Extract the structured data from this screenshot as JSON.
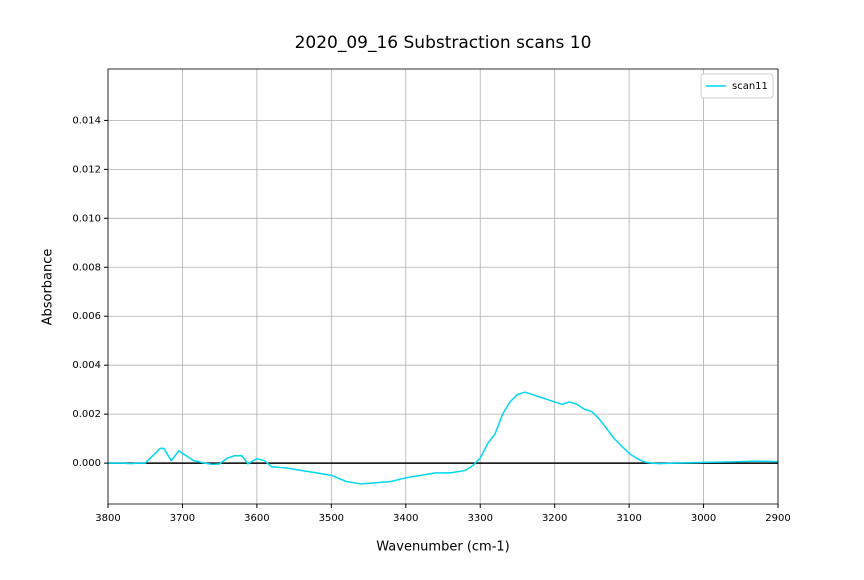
{
  "chart_data": {
    "type": "line",
    "title": "2020_09_16 Substraction scans 10",
    "xlabel": "Wavenumber (cm-1)",
    "ylabel": "Absorbance",
    "x": [
      3800,
      3790,
      3780,
      3770,
      3760,
      3750,
      3740,
      3730,
      3725,
      3715,
      3705,
      3695,
      3685,
      3670,
      3660,
      3650,
      3640,
      3630,
      3620,
      3612,
      3600,
      3590,
      3580,
      3560,
      3540,
      3520,
      3500,
      3480,
      3460,
      3440,
      3420,
      3400,
      3380,
      3360,
      3340,
      3320,
      3310,
      3300,
      3290,
      3280,
      3270,
      3260,
      3250,
      3240,
      3230,
      3220,
      3210,
      3200,
      3190,
      3180,
      3170,
      3160,
      3150,
      3140,
      3130,
      3120,
      3110,
      3100,
      3090,
      3080,
      3070,
      3060,
      3040,
      3000,
      2960,
      2930,
      2900
    ],
    "series": [
      {
        "name": "scan11",
        "color": "#00d7f0",
        "values": [
          0,
          0,
          0,
          -2e-05,
          0,
          0,
          0.0003,
          0.0006,
          0.0006,
          0.0001,
          0.0005,
          0.0003,
          0.0001,
          0,
          -5e-05,
          -3e-05,
          0.0002,
          0.0003,
          0.0003,
          -3e-05,
          0.00018,
          0.0001,
          -0.00015,
          -0.0002,
          -0.0003,
          -0.0004,
          -0.0005,
          -0.00075,
          -0.00085,
          -0.0008,
          -0.00075,
          -0.0006,
          -0.0005,
          -0.0004,
          -0.0004,
          -0.0003,
          -0.0001,
          0.0002,
          0.0008,
          0.0012,
          0.002,
          0.0025,
          0.0028,
          0.0029,
          0.0028,
          0.0027,
          0.0026,
          0.0025,
          0.0024,
          0.0025,
          0.0024,
          0.0022,
          0.0021,
          0.0018,
          0.0014,
          0.001,
          0.0007,
          0.0004,
          0.0002,
          5e-05,
          0,
          -2e-05,
          0,
          3e-05,
          5e-05,
          8e-05,
          6e-05
        ]
      }
    ],
    "xlim": [
      3800,
      2900
    ],
    "xticks": [
      3800,
      3700,
      3600,
      3500,
      3400,
      3300,
      3200,
      3100,
      3000,
      2900
    ],
    "ylim": [
      -0.00167,
      0.0161
    ],
    "yticks": [
      {
        "value": 0,
        "label": "0.000"
      },
      0.002,
      0.004,
      0.006,
      0.008,
      {
        "value": 0.01,
        "label": "0.010"
      },
      0.012,
      0.014
    ],
    "hline": 0,
    "grid": true,
    "legend": "upper right"
  }
}
